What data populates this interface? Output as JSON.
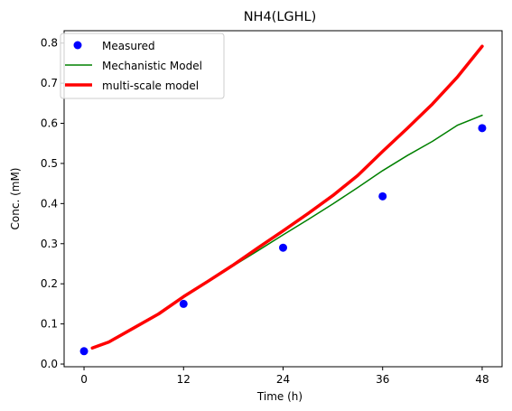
{
  "chart_data": {
    "type": "line",
    "title": "NH4(LGHL)",
    "xlabel": "Time (h)",
    "ylabel": "Conc. (mM)",
    "xlim": [
      -2.4,
      50.4
    ],
    "ylim": [
      -0.0067,
      0.8308
    ],
    "xticks": [
      0,
      12,
      24,
      36,
      48
    ],
    "yticks": [
      0.0,
      0.1,
      0.2,
      0.3,
      0.4,
      0.5,
      0.6,
      0.7,
      0.8
    ],
    "ytick_labels": [
      "0.0",
      "0.1",
      "0.2",
      "0.3",
      "0.4",
      "0.5",
      "0.6",
      "0.7",
      "0.8"
    ],
    "grid": false,
    "legend_position": "upper-left",
    "series": [
      {
        "name": "Measured",
        "kind": "scatter",
        "color": "#0000ff",
        "x": [
          0,
          12,
          24,
          36,
          48
        ],
        "y": [
          0.032,
          0.15,
          0.29,
          0.418,
          0.588
        ]
      },
      {
        "name": "Mechanistic Model",
        "kind": "line",
        "color": "#008000",
        "x": [
          1,
          3,
          6,
          9,
          12,
          15,
          18,
          21,
          24,
          27,
          30,
          33,
          36,
          39,
          42,
          45,
          48
        ],
        "y": [
          0.04,
          0.055,
          0.09,
          0.125,
          0.166,
          0.205,
          0.245,
          0.283,
          0.322,
          0.36,
          0.399,
          0.44,
          0.482,
          0.52,
          0.555,
          0.595,
          0.62
        ]
      },
      {
        "name": "multi-scale model",
        "kind": "line",
        "color": "#ff0000",
        "x": [
          1,
          3,
          6,
          9,
          12,
          15,
          18,
          21,
          24,
          27,
          30,
          33,
          36,
          39,
          42,
          45,
          48
        ],
        "y": [
          0.04,
          0.055,
          0.09,
          0.125,
          0.168,
          0.207,
          0.247,
          0.29,
          0.332,
          0.375,
          0.42,
          0.47,
          0.53,
          0.588,
          0.648,
          0.715,
          0.792
        ]
      }
    ]
  }
}
